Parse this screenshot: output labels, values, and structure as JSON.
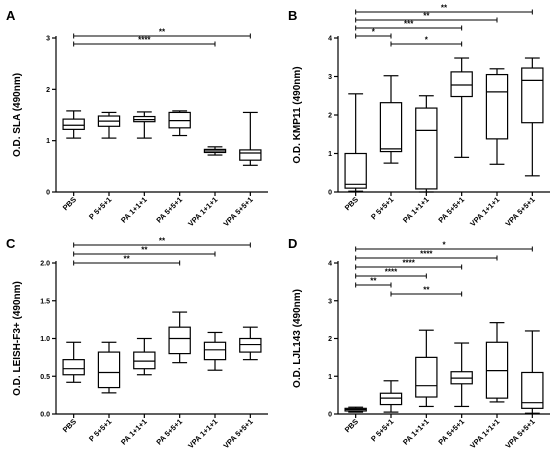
{
  "chart_data": [
    {
      "type": "boxplot",
      "panel": "A",
      "ylabel": "O.D. SLA (490nm)",
      "ylim": [
        0,
        3
      ],
      "yticks": [
        0,
        1,
        2,
        3
      ],
      "categories": [
        "PBS",
        "P 5+5+1",
        "PA 1+1+1",
        "PA 5+5+1",
        "VPA 1+1+1",
        "VPA 5+5+1"
      ],
      "boxes": [
        {
          "min": 1.05,
          "q1": 1.22,
          "median": 1.3,
          "q3": 1.42,
          "max": 1.58
        },
        {
          "min": 1.05,
          "q1": 1.28,
          "median": 1.38,
          "q3": 1.48,
          "max": 1.55
        },
        {
          "min": 1.05,
          "q1": 1.37,
          "median": 1.41,
          "q3": 1.47,
          "max": 1.56
        },
        {
          "min": 1.1,
          "q1": 1.25,
          "median": 1.39,
          "q3": 1.55,
          "max": 1.58
        },
        {
          "min": 0.72,
          "q1": 0.77,
          "median": 0.8,
          "q3": 0.83,
          "max": 0.88
        },
        {
          "min": 0.52,
          "q1": 0.62,
          "median": 0.76,
          "q3": 0.82,
          "max": 1.55
        }
      ],
      "significance": [
        {
          "from": 0,
          "to": 5,
          "label": "**"
        },
        {
          "from": 0,
          "to": 4,
          "label": "****"
        }
      ]
    },
    {
      "type": "boxplot",
      "panel": "B",
      "ylabel": "O.D. KMP11 (490nm)",
      "ylim": [
        0,
        4
      ],
      "yticks": [
        0,
        1,
        2,
        3,
        4
      ],
      "categories": [
        "PBS",
        "P 5+5+1",
        "PA 1+1+1",
        "PA 5+5+1",
        "VPA 1+1+1",
        "VPA 5+5+1"
      ],
      "boxes": [
        {
          "min": 0.02,
          "q1": 0.1,
          "median": 0.2,
          "q3": 1.0,
          "max": 2.55
        },
        {
          "min": 0.75,
          "q1": 1.05,
          "median": 1.12,
          "q3": 2.32,
          "max": 3.02
        },
        {
          "min": 0.0,
          "q1": 0.08,
          "median": 1.6,
          "q3": 2.18,
          "max": 2.5
        },
        {
          "min": 0.9,
          "q1": 2.48,
          "median": 2.78,
          "q3": 3.12,
          "max": 3.48
        },
        {
          "min": 0.72,
          "q1": 1.38,
          "median": 2.6,
          "q3": 3.05,
          "max": 3.2
        },
        {
          "min": 0.42,
          "q1": 1.8,
          "median": 2.9,
          "q3": 3.22,
          "max": 3.48
        }
      ],
      "significance": [
        {
          "from": 0,
          "to": 5,
          "label": "**"
        },
        {
          "from": 0,
          "to": 4,
          "label": "**"
        },
        {
          "from": 0,
          "to": 3,
          "label": "***"
        },
        {
          "from": 0,
          "to": 1,
          "label": "*"
        },
        {
          "from": 1,
          "to": 3,
          "label": "*"
        }
      ]
    },
    {
      "type": "boxplot",
      "panel": "C",
      "ylabel": "O.D. LEISH-F3+ (490nm)",
      "ylim": [
        0,
        2
      ],
      "yticks": [
        0,
        0.5,
        1.0,
        1.5,
        2.0
      ],
      "yticklabels": [
        "0.0",
        "0.5",
        "1.0",
        "1.5",
        "2.0"
      ],
      "categories": [
        "PBS",
        "P 5+5+1",
        "PA 1+1+1",
        "PA 5+5+1",
        "VPA 1+1+1",
        "VPA 5+5+1"
      ],
      "boxes": [
        {
          "min": 0.42,
          "q1": 0.52,
          "median": 0.6,
          "q3": 0.72,
          "max": 0.95
        },
        {
          "min": 0.28,
          "q1": 0.35,
          "median": 0.55,
          "q3": 0.82,
          "max": 0.95
        },
        {
          "min": 0.52,
          "q1": 0.6,
          "median": 0.7,
          "q3": 0.82,
          "max": 1.0
        },
        {
          "min": 0.68,
          "q1": 0.8,
          "median": 1.0,
          "q3": 1.15,
          "max": 1.35
        },
        {
          "min": 0.58,
          "q1": 0.72,
          "median": 0.85,
          "q3": 0.95,
          "max": 1.08
        },
        {
          "min": 0.72,
          "q1": 0.82,
          "median": 0.92,
          "q3": 1.0,
          "max": 1.15
        }
      ],
      "significance": [
        {
          "from": 0,
          "to": 5,
          "label": "**"
        },
        {
          "from": 0,
          "to": 4,
          "label": "**"
        },
        {
          "from": 0,
          "to": 3,
          "label": "**"
        }
      ]
    },
    {
      "type": "boxplot",
      "panel": "D",
      "ylabel": "O.D. LJL143 (490nm)",
      "ylim": [
        0,
        4
      ],
      "yticks": [
        0,
        1,
        2,
        3,
        4
      ],
      "categories": [
        "PBS",
        "P 5+5+1",
        "PA 1+1+1",
        "PA 5+5+1",
        "VPA 1+1+1",
        "VPA 5+5+1"
      ],
      "boxes": [
        {
          "min": 0.05,
          "q1": 0.08,
          "median": 0.12,
          "q3": 0.15,
          "max": 0.18
        },
        {
          "min": 0.05,
          "q1": 0.25,
          "median": 0.42,
          "q3": 0.55,
          "max": 0.88
        },
        {
          "min": 0.2,
          "q1": 0.45,
          "median": 0.75,
          "q3": 1.5,
          "max": 2.22
        },
        {
          "min": 0.2,
          "q1": 0.8,
          "median": 0.95,
          "q3": 1.12,
          "max": 1.88
        },
        {
          "min": 0.32,
          "q1": 0.42,
          "median": 1.15,
          "q3": 1.9,
          "max": 2.42
        },
        {
          "min": 0.02,
          "q1": 0.15,
          "median": 0.3,
          "q3": 1.1,
          "max": 2.2
        }
      ],
      "significance": [
        {
          "from": 0,
          "to": 5,
          "label": "*"
        },
        {
          "from": 0,
          "to": 4,
          "label": "****"
        },
        {
          "from": 0,
          "to": 3,
          "label": "****"
        },
        {
          "from": 0,
          "to": 2,
          "label": "****"
        },
        {
          "from": 0,
          "to": 1,
          "label": "**"
        },
        {
          "from": 1,
          "to": 3,
          "label": "**"
        }
      ]
    }
  ]
}
